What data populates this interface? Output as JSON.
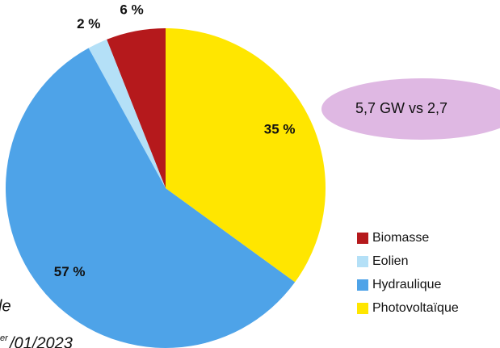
{
  "chart_data": {
    "type": "pie",
    "categories": [
      "Biomasse",
      "Eolien",
      "Hydraulique",
      "Photovoltaïque"
    ],
    "values": [
      6,
      2,
      57,
      35
    ],
    "value_labels": [
      "6 %",
      "2 %",
      "57 %",
      "35 %"
    ],
    "colors": [
      "#b5191c",
      "#b4e0f7",
      "#4ea3e8",
      "#ffe600"
    ],
    "legend": "right",
    "annotations": [
      "5,7 GW vs 2,7",
      "le",
      "er",
      "/01/2023"
    ]
  }
}
